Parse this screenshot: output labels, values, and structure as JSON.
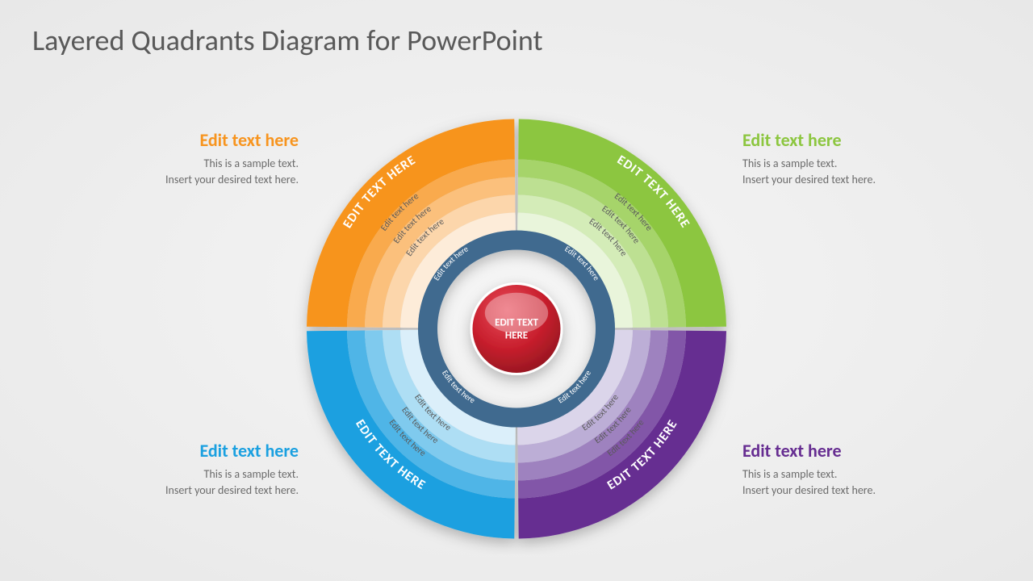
{
  "title": "Layered Quadrants Diagram for PowerPoint",
  "background": "radial-gradient(#f5f5f5,#e8e8e8)",
  "center": {
    "line1": "EDIT TEXT",
    "line2": "HERE",
    "fill": "#c81f2d",
    "highlight": "#e84c5a",
    "text_color": "#ffffff",
    "fontsize": 13,
    "fontweight": "700"
  },
  "center_ring": {
    "fill": "#3f6a8f",
    "text": "Edit text here",
    "text_color": "#ffffff",
    "text_fontsize": 10
  },
  "diagram": {
    "type": "layered-quadrant-donut",
    "outer_radius": 260,
    "gap_deg": 1.2,
    "layer_radii": [
      260,
      210,
      188,
      166,
      144,
      122,
      98,
      56
    ],
    "outer_label": "EDIT TEXT HERE",
    "outer_label_fontsize": 16,
    "outer_label_weight": "700",
    "inner_label": "Edit text here",
    "inner_label_fontsize": 11,
    "inner_label_color": "#5a5a5a"
  },
  "quadrants": [
    {
      "id": "tr",
      "angle_start": -90,
      "angle_end": 0,
      "accent": "#8cc63f",
      "layers": [
        "#8cc63f",
        "#a6d46b",
        "#bde092",
        "#d4ecb8",
        "#e9f5db"
      ],
      "caption_heading": "Edit text here",
      "caption_body": "This is a sample text.\nInsert your desired text here."
    },
    {
      "id": "br",
      "angle_start": 0,
      "angle_end": 90,
      "accent": "#662d91",
      "layers": [
        "#662d91",
        "#8257a8",
        "#9e82bf",
        "#bcaed6",
        "#dbd5ea"
      ],
      "caption_heading": "Edit text here",
      "caption_body": "This is a sample text.\nInsert your desired text here."
    },
    {
      "id": "bl",
      "angle_start": 90,
      "angle_end": 180,
      "accent": "#1aa0e0",
      "layers": [
        "#1aa0e0",
        "#4fb5e7",
        "#7fcaee",
        "#aedef4",
        "#dbeffa"
      ],
      "caption_heading": "Edit text here",
      "caption_body": "This is a sample text.\nInsert your desired text here."
    },
    {
      "id": "tl",
      "angle_start": 180,
      "angle_end": 270,
      "accent": "#f7941e",
      "layers": [
        "#f7941e",
        "#f9aa4d",
        "#fbc07c",
        "#fcd6ab",
        "#fdecd9"
      ],
      "caption_heading": "Edit text here",
      "caption_body": "This is a sample text.\nInsert your desired text here."
    }
  ],
  "caption_heading_fontsize": 22,
  "caption_body_fontsize": 14,
  "caption_body_color": "#6b6b6b"
}
